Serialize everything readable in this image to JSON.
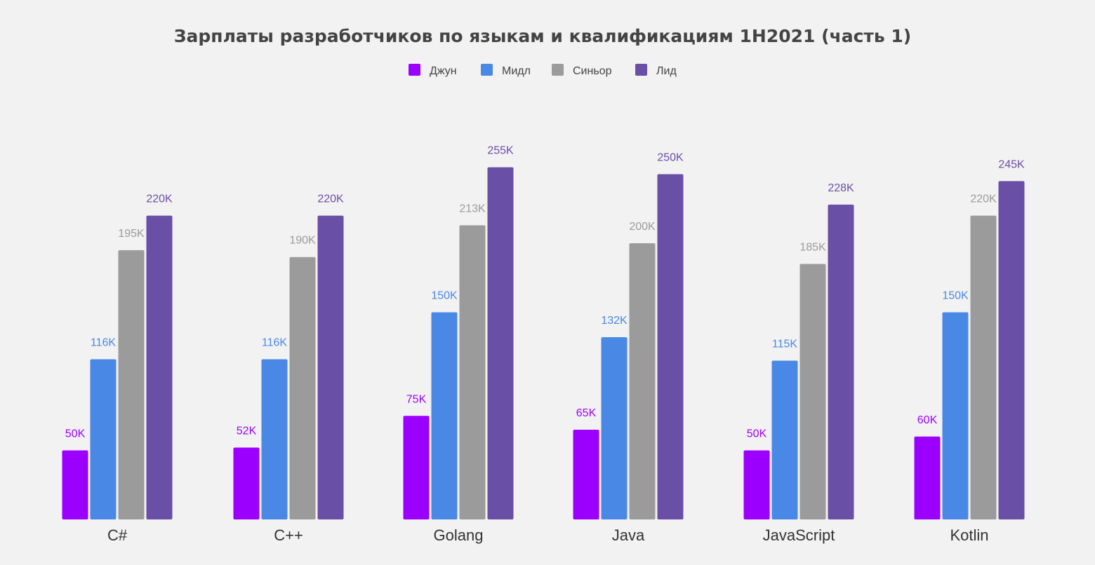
{
  "chart_data": {
    "type": "bar",
    "title": "Зарплаты разработчиков по языкам и квалификациям 1H2021 (часть 1)",
    "xlabel": "",
    "ylabel": "",
    "ylim": [
      0,
      290
    ],
    "grid": false,
    "legend_position": "top-center",
    "categories": [
      "C#",
      "C++",
      "Golang",
      "Java",
      "JavaScript",
      "Kotlin"
    ],
    "series": [
      {
        "name": "Джун",
        "color": "#9b00ff",
        "values": [
          50,
          52,
          75,
          65,
          50,
          60
        ],
        "labels": [
          "50K",
          "52K",
          "75K",
          "65K",
          "50K",
          "60K"
        ]
      },
      {
        "name": "Мидл",
        "color": "#4a88e6",
        "values": [
          116,
          116,
          150,
          132,
          115,
          150
        ],
        "labels": [
          "116K",
          "116K",
          "150K",
          "132K",
          "115K",
          "150K"
        ]
      },
      {
        "name": "Синьор",
        "color": "#9b9b9b",
        "values": [
          195,
          190,
          213,
          200,
          185,
          220
        ],
        "labels": [
          "195K",
          "190K",
          "213K",
          "200K",
          "185K",
          "220K"
        ]
      },
      {
        "name": "Лид",
        "color": "#6a4fa6",
        "values": [
          220,
          220,
          255,
          250,
          228,
          245
        ],
        "labels": [
          "220K",
          "220K",
          "255K",
          "250K",
          "228K",
          "245K"
        ]
      }
    ]
  }
}
